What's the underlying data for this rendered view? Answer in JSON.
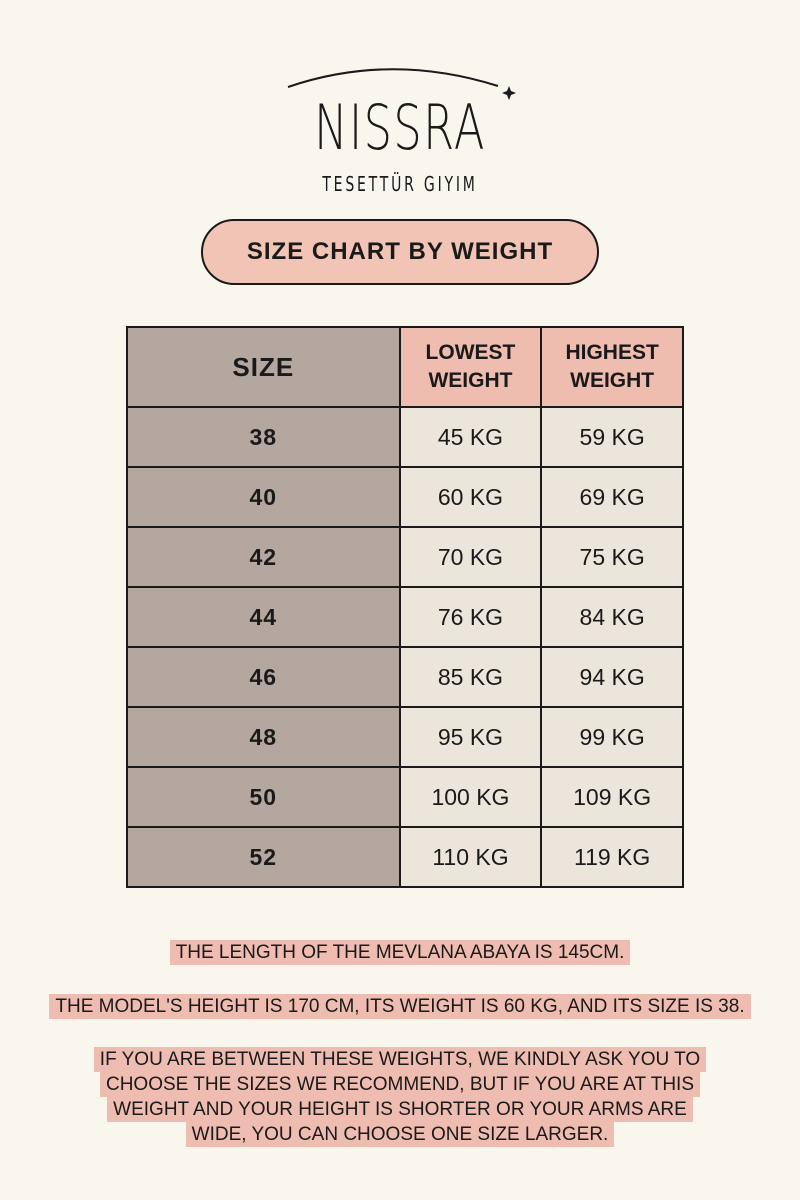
{
  "logo": {
    "brand": "NISSRA",
    "tagline": "TESETTÜR GIYIM"
  },
  "title": "SIZE CHART BY WEIGHT",
  "table": {
    "headers": [
      "SIZE",
      "LOWEST WEIGHT",
      "HIGHEST WEIGHT"
    ],
    "rows": [
      [
        "38",
        "45 KG",
        "59 KG"
      ],
      [
        "40",
        "60 KG",
        "69 KG"
      ],
      [
        "42",
        "70 KG",
        "75 KG"
      ],
      [
        "44",
        "76 KG",
        "84 KG"
      ],
      [
        "46",
        "85 KG",
        "94 KG"
      ],
      [
        "48",
        "95 KG",
        "99 KG"
      ],
      [
        "50",
        "100 KG",
        "109 KG"
      ],
      [
        "52",
        "110 KG",
        "119 KG"
      ]
    ]
  },
  "notes": [
    "THE LENGTH OF THE MEVLANA ABAYA IS 145CM.",
    "THE MODEL'S HEIGHT IS 170 CM, ITS WEIGHT IS 60 KG, AND ITS SIZE IS 38.",
    "IF YOU ARE BETWEEN THESE WEIGHTS, WE KINDLY ASK YOU TO CHOOSE THE SIZES WE RECOMMEND, BUT IF YOU ARE AT THIS WEIGHT AND YOUR HEIGHT IS SHORTER OR YOUR ARMS ARE WIDE, YOU CAN CHOOSE ONE SIZE LARGER."
  ],
  "colors": {
    "background": "#f9f6ee",
    "size_column": "#b3a79f",
    "header_pink": "#efbcb0",
    "cell": "#ebe5dc",
    "highlight": "#eebcb0"
  }
}
